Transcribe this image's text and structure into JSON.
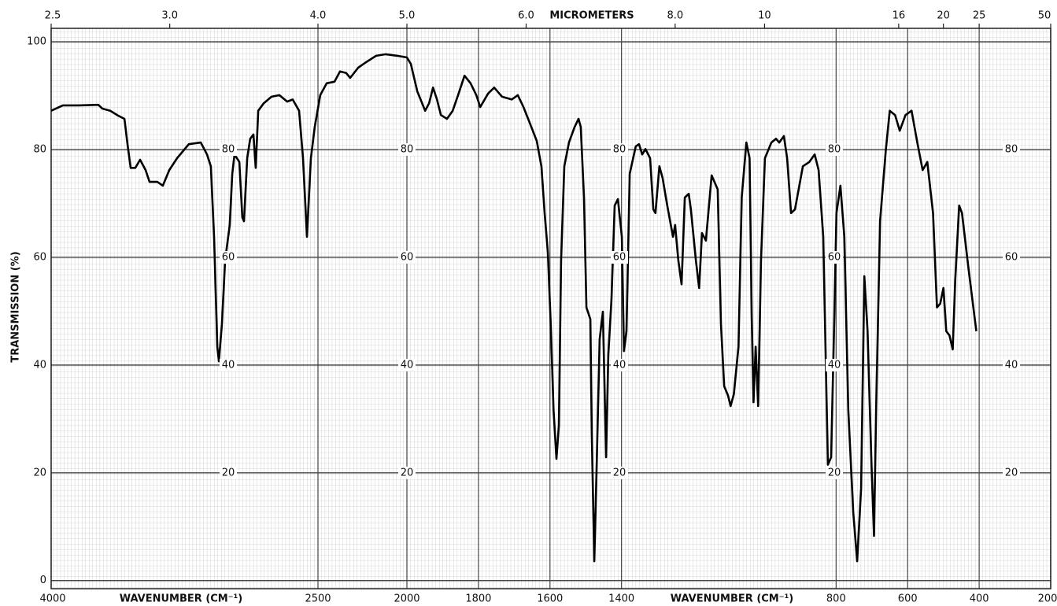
{
  "chart_data": {
    "type": "line",
    "x_label": "WAVENUMBER (CM⁻¹)",
    "y_label": "TRANSMISSION (%)",
    "x2_label": "MICROMETERS",
    "xlim": [
      4000,
      200
    ],
    "x_scale_break": 2000,
    "ylim": [
      -1.5,
      102.5
    ],
    "xticks": [
      4000,
      2500,
      2000,
      1800,
      1600,
      1400,
      800,
      600,
      400,
      200
    ],
    "x2ticks": [
      2.5,
      {
        "value": 3,
        "label": "3.0"
      },
      {
        "value": 4,
        "label": "4.0"
      },
      {
        "value": 5,
        "label": "5.0"
      },
      {
        "value": 6,
        "label": "6.0"
      },
      {
        "value": 8,
        "label": "8.0"
      },
      10,
      16,
      20,
      25,
      50
    ],
    "yticks": [
      0,
      20,
      40,
      60,
      80,
      100
    ],
    "grid": true,
    "color": "#000000",
    "x": [
      4000,
      3934,
      3845,
      3735,
      3712,
      3668,
      3624,
      3588,
      3571,
      3553,
      3527,
      3500,
      3469,
      3447,
      3403,
      3372,
      3336,
      3292,
      3226,
      3159,
      3124,
      3102,
      3084,
      3066,
      3057,
      3040,
      3022,
      2996,
      2982,
      2969,
      2942,
      2925,
      2916,
      2898,
      2881,
      2863,
      2850,
      2836,
      2805,
      2761,
      2717,
      2673,
      2642,
      2606,
      2584,
      2562,
      2540,
      2518,
      2487,
      2451,
      2407,
      2376,
      2341,
      2319,
      2274,
      2230,
      2173,
      2119,
      2053,
      2000,
      1989,
      1971,
      1949,
      1938,
      1927,
      1916,
      1905,
      1888,
      1872,
      1857,
      1839,
      1822,
      1806,
      1795,
      1773,
      1756,
      1734,
      1707,
      1690,
      1674,
      1652,
      1637,
      1624,
      1615,
      1606,
      1597,
      1590,
      1582,
      1575,
      1569,
      1560,
      1547,
      1531,
      1520,
      1514,
      1505,
      1498,
      1487,
      1483,
      1476,
      1470,
      1461,
      1452,
      1443,
      1437,
      1428,
      1419,
      1410,
      1399,
      1393,
      1386,
      1377,
      1360,
      1351,
      1342,
      1333,
      1320,
      1311,
      1305,
      1294,
      1285,
      1272,
      1256,
      1250,
      1241,
      1232,
      1223,
      1212,
      1206,
      1192,
      1183,
      1175,
      1164,
      1148,
      1131,
      1122,
      1113,
      1102,
      1095,
      1086,
      1073,
      1064,
      1051,
      1042,
      1036,
      1031,
      1025,
      1018,
      1010,
      999,
      981,
      968,
      959,
      946,
      937,
      926,
      915,
      893,
      875,
      860,
      849,
      836,
      823,
      814,
      805,
      799,
      788,
      777,
      766,
      752,
      741,
      730,
      721,
      712,
      701,
      694,
      688,
      677,
      661,
      650,
      635,
      622,
      606,
      589,
      573,
      558,
      545,
      529,
      518,
      509,
      500,
      492,
      483,
      474,
      467,
      456,
      448,
      430,
      419,
      408
    ],
    "values": [
      87.2,
      88.2,
      88.2,
      88.3,
      87.6,
      87.2,
      86.3,
      85.7,
      81.0,
      76.6,
      76.6,
      78.1,
      76.2,
      74.0,
      74.0,
      73.3,
      76.2,
      78.4,
      81.0,
      81.3,
      79.1,
      76.9,
      63.8,
      43.4,
      40.7,
      47.7,
      59.4,
      66.0,
      75.5,
      79.1,
      77.7,
      67.4,
      66.7,
      78.4,
      82.0,
      82.8,
      76.6,
      87.2,
      88.6,
      89.8,
      90.1,
      88.9,
      89.3,
      87.2,
      78.4,
      63.8,
      78.4,
      84.2,
      90.1,
      92.3,
      92.6,
      94.5,
      94.2,
      93.3,
      95.2,
      96.2,
      97.4,
      97.7,
      97.4,
      97.1,
      95.9,
      90.8,
      87.2,
      88.6,
      91.5,
      89.3,
      86.4,
      85.7,
      87.2,
      90.1,
      93.7,
      92.3,
      90.1,
      87.9,
      90.4,
      91.5,
      89.8,
      89.3,
      90.1,
      87.9,
      84.2,
      81.6,
      76.9,
      68.2,
      60.9,
      46.3,
      31.7,
      22.6,
      28.8,
      59.4,
      76.9,
      81.3,
      84.2,
      85.7,
      84.2,
      71.1,
      50.7,
      48.5,
      27.3,
      3.6,
      20.0,
      44.8,
      49.9,
      22.9,
      41.9,
      52.1,
      69.6,
      70.8,
      63.8,
      42.6,
      46.3,
      75.5,
      80.6,
      81.0,
      79.1,
      80.1,
      78.4,
      68.9,
      68.2,
      76.9,
      74.7,
      69.6,
      63.8,
      66.0,
      59.4,
      55.0,
      71.1,
      71.8,
      68.9,
      59.4,
      54.3,
      64.5,
      63.1,
      75.2,
      72.6,
      47.7,
      36.1,
      34.3,
      32.4,
      34.6,
      43.4,
      71.1,
      81.3,
      78.4,
      49.2,
      33.1,
      43.4,
      32.4,
      59.4,
      78.4,
      81.3,
      82.0,
      81.3,
      82.5,
      78.4,
      68.2,
      68.9,
      76.9,
      77.7,
      79.1,
      76.2,
      63.8,
      21.5,
      22.9,
      49.2,
      68.2,
      73.3,
      63.8,
      31.7,
      12.7,
      3.6,
      17.1,
      56.5,
      46.3,
      21.5,
      8.3,
      31.7,
      66.7,
      79.9,
      87.2,
      86.4,
      83.5,
      86.4,
      87.2,
      81.3,
      76.2,
      77.7,
      68.2,
      50.7,
      51.4,
      54.3,
      46.3,
      45.5,
      42.9,
      55.8,
      69.6,
      68.2,
      58.0,
      52.1,
      46.3
    ]
  }
}
